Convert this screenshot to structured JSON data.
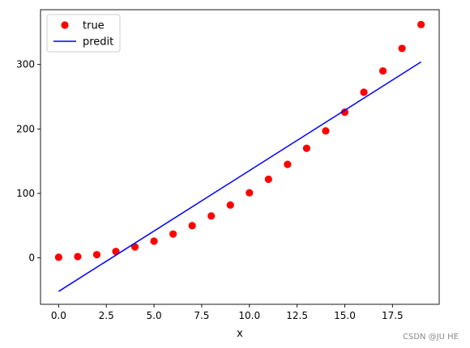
{
  "chart_data": {
    "type": "scatter",
    "title": "",
    "xlabel": "x",
    "ylabel": "",
    "xlim": [
      -0.95,
      19.95
    ],
    "ylim": [
      -72,
      385
    ],
    "xticks": [
      0.0,
      2.5,
      5.0,
      7.5,
      10.0,
      12.5,
      15.0,
      17.5
    ],
    "xtick_labels": [
      "0.0",
      "2.5",
      "5.0",
      "7.5",
      "10.0",
      "12.5",
      "15.0",
      "17.5"
    ],
    "yticks": [
      0,
      100,
      200,
      300
    ],
    "ytick_labels": [
      "0",
      "100",
      "200",
      "300"
    ],
    "grid": false,
    "legend_position": "top-left",
    "series": [
      {
        "name": "true",
        "kind": "scatter",
        "color": "#ff0000",
        "x": [
          0,
          1,
          2,
          3,
          4,
          5,
          6,
          7,
          8,
          9,
          10,
          11,
          12,
          13,
          14,
          15,
          16,
          17,
          18,
          19
        ],
        "y": [
          1,
          2,
          5,
          10,
          17,
          26,
          37,
          50,
          65,
          82,
          101,
          122,
          145,
          170,
          197,
          226,
          257,
          290,
          325,
          362
        ]
      },
      {
        "name": "predit",
        "kind": "line",
        "color": "#0000ff",
        "x": [
          0,
          19
        ],
        "y": [
          -52,
          304
        ]
      }
    ]
  },
  "watermark": "CSDN @JU HE"
}
